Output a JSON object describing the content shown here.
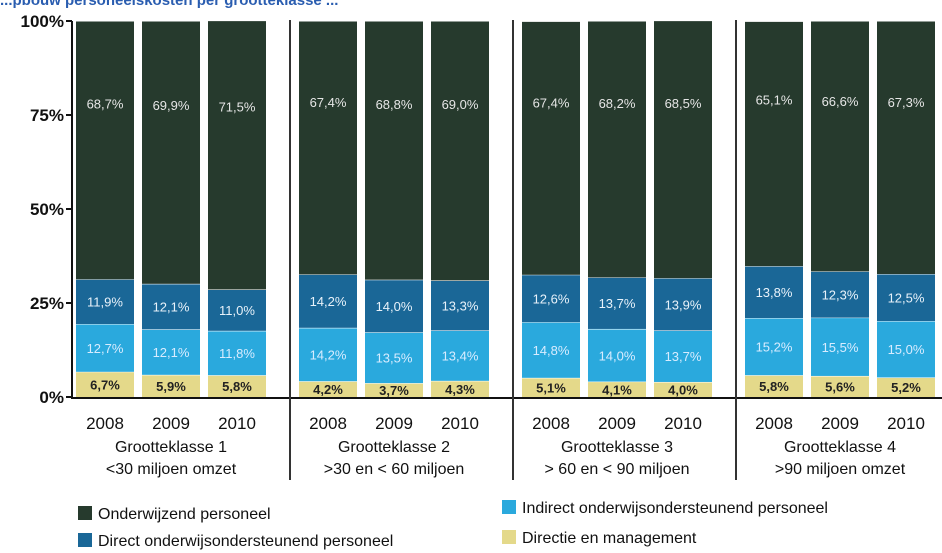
{
  "chart_data": {
    "type": "bar",
    "stacked": true,
    "title": "...pbouw personeelskosten per grootteklasse ...",
    "ylim": [
      0,
      100
    ],
    "yticks": [
      "0%",
      "25%",
      "50%",
      "75%",
      "100%"
    ],
    "groups": [
      {
        "line1": "Grootteklasse 1",
        "line2": "<30 miljoen omzet",
        "categories": [
          "2008",
          "2009",
          "2010"
        ]
      },
      {
        "line1": "Grootteklasse 2",
        "line2": ">30 en <  60 miljoen",
        "categories": [
          "2008",
          "2009",
          "2010"
        ]
      },
      {
        "line1": "Grootteklasse 3",
        "line2": ">  60 en <  90 miljoen",
        "categories": [
          "2008",
          "2009",
          "2010"
        ]
      },
      {
        "line1": "Grootteklasse 4",
        "line2": ">90 miljoen omzet",
        "categories": [
          "2008",
          "2009",
          "2010"
        ]
      }
    ],
    "series": [
      {
        "name": "Directie en management",
        "color": "#e4d98a",
        "labelColor": "#222222",
        "values": [
          6.7,
          5.9,
          5.8,
          4.2,
          3.7,
          4.3,
          5.1,
          4.1,
          4.0,
          5.8,
          5.6,
          5.2
        ],
        "labels": [
          "6,7%",
          "5,9%",
          "5,8%",
          "4,2%",
          "3,7%",
          "4,3%",
          "5,1%",
          "4,1%",
          "4,0%",
          "5,8%",
          "5,6%",
          "5,2%"
        ]
      },
      {
        "name": "Indirect onderwijsondersteunend personeel",
        "color": "#2aa9dd",
        "labelColor": "#d8ecff",
        "values": [
          12.7,
          12.1,
          11.8,
          14.2,
          13.5,
          13.4,
          14.8,
          14.0,
          13.7,
          15.2,
          15.5,
          15.0
        ],
        "labels": [
          "12,7%",
          "12,1%",
          "11,8%",
          "14,2%",
          "13,5%",
          "13,4%",
          "14,8%",
          "14,0%",
          "13,7%",
          "15,2%",
          "15,5%",
          "15,0%"
        ]
      },
      {
        "name": "Direct onderwijsondersteunend personeel",
        "color": "#1a6797",
        "labelColor": "#e8f2fa",
        "values": [
          11.9,
          12.1,
          11.0,
          14.2,
          14.0,
          13.3,
          12.6,
          13.7,
          13.9,
          13.8,
          12.3,
          12.5
        ],
        "labels": [
          "11,9%",
          "12,1%",
          "11,0%",
          "14,2%",
          "14,0%",
          "13,3%",
          "12,6%",
          "13,7%",
          "13,9%",
          "13,8%",
          "12,3%",
          "12,5%"
        ]
      },
      {
        "name": "Onderwijzend personeel",
        "color": "#263a2d",
        "labelColor": "#e6e6e6",
        "values": [
          68.7,
          69.9,
          71.5,
          67.4,
          68.8,
          69.0,
          67.4,
          68.2,
          68.5,
          65.1,
          66.6,
          67.3
        ],
        "labels": [
          "68,7%",
          "69,9%",
          "71,5%",
          "67,4%",
          "68,8%",
          "69,0%",
          "67,4%",
          "68,2%",
          "68,5%",
          "65,1%",
          "66,6%",
          "67,3%"
        ]
      }
    ],
    "legend": {
      "placement": "bottom",
      "order": [
        3,
        1,
        2,
        0
      ]
    },
    "colors": {
      "gap": "#ffffff",
      "divider": "#333333",
      "axis": "#111111",
      "title": "#2a5db0"
    }
  }
}
